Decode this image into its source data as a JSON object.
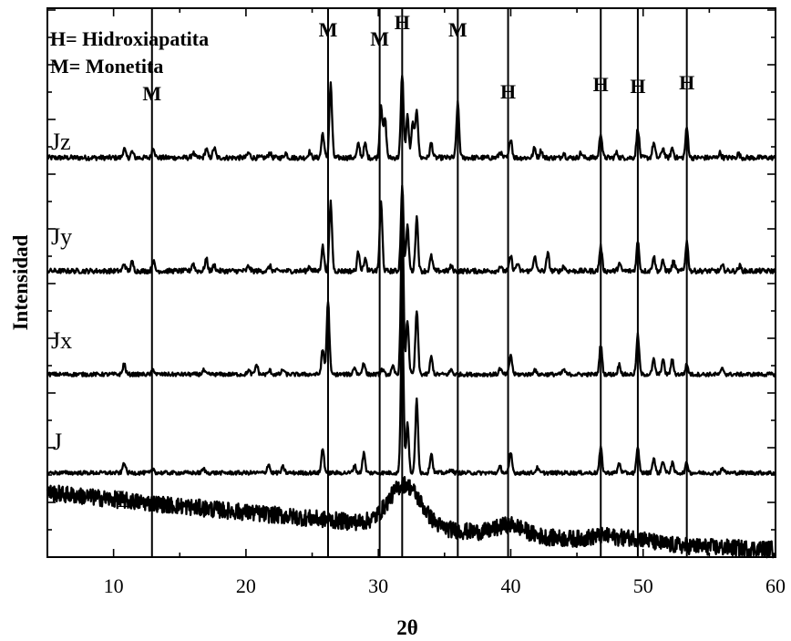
{
  "chart_data": {
    "type": "line",
    "xlabel": "2θ",
    "ylabel": "Intensidad",
    "xlim": [
      5,
      60
    ],
    "xticks": [
      10,
      20,
      30,
      40,
      50,
      60
    ],
    "y_tick_labels_shown": false,
    "grid": false,
    "legend": {
      "placement": "top-left",
      "entries": [
        "H= Hidroxiapatita",
        "M= Monetita"
      ]
    },
    "reference_lines": [
      {
        "label": "M",
        "x": 12.9
      },
      {
        "label": "M",
        "x": 26.2
      },
      {
        "label": "M",
        "x": 30.1
      },
      {
        "label": "H",
        "x": 31.8
      },
      {
        "label": "M",
        "x": 36.0
      },
      {
        "label": "H",
        "x": 39.8
      },
      {
        "label": "H",
        "x": 46.8
      },
      {
        "label": "H",
        "x": 49.6
      },
      {
        "label": "H",
        "x": 53.3
      }
    ],
    "series": [
      {
        "name": "Jz",
        "offset": 0.8,
        "noise": 0.005,
        "peaks": [
          [
            10.8,
            0.018
          ],
          [
            11.4,
            0.012
          ],
          [
            13.0,
            0.022
          ],
          [
            16.0,
            0.01
          ],
          [
            17.0,
            0.018
          ],
          [
            17.6,
            0.02
          ],
          [
            20.2,
            0.01
          ],
          [
            21.8,
            0.01
          ],
          [
            23.0,
            0.01
          ],
          [
            24.8,
            0.012
          ],
          [
            25.8,
            0.05
          ],
          [
            26.4,
            0.15
          ],
          [
            28.5,
            0.028
          ],
          [
            29.0,
            0.028
          ],
          [
            30.2,
            0.11
          ],
          [
            30.5,
            0.08
          ],
          [
            31.8,
            0.17
          ],
          [
            32.2,
            0.085
          ],
          [
            32.6,
            0.07
          ],
          [
            32.9,
            0.1
          ],
          [
            34.0,
            0.03
          ],
          [
            36.0,
            0.11
          ],
          [
            39.2,
            0.012
          ],
          [
            40.0,
            0.04
          ],
          [
            41.8,
            0.02
          ],
          [
            42.3,
            0.015
          ],
          [
            44.0,
            0.01
          ],
          [
            45.3,
            0.01
          ],
          [
            46.8,
            0.05
          ],
          [
            48.0,
            0.01
          ],
          [
            49.6,
            0.06
          ],
          [
            50.8,
            0.03
          ],
          [
            51.5,
            0.02
          ],
          [
            52.2,
            0.02
          ],
          [
            53.3,
            0.06
          ],
          [
            55.8,
            0.01
          ],
          [
            57.2,
            0.008
          ]
        ]
      },
      {
        "name": "Jy",
        "offset": 0.57,
        "noise": 0.005,
        "peaks": [
          [
            10.8,
            0.015
          ],
          [
            11.4,
            0.018
          ],
          [
            13.0,
            0.02
          ],
          [
            16.0,
            0.016
          ],
          [
            17.0,
            0.025
          ],
          [
            17.6,
            0.012
          ],
          [
            20.2,
            0.01
          ],
          [
            21.8,
            0.01
          ],
          [
            24.8,
            0.01
          ],
          [
            25.8,
            0.05
          ],
          [
            26.4,
            0.14
          ],
          [
            28.5,
            0.04
          ],
          [
            29.0,
            0.025
          ],
          [
            30.2,
            0.14
          ],
          [
            31.8,
            0.17
          ],
          [
            32.2,
            0.09
          ],
          [
            32.9,
            0.11
          ],
          [
            34.0,
            0.03
          ],
          [
            35.5,
            0.01
          ],
          [
            39.2,
            0.01
          ],
          [
            40.0,
            0.03
          ],
          [
            40.5,
            0.015
          ],
          [
            41.8,
            0.03
          ],
          [
            42.8,
            0.035
          ],
          [
            44.0,
            0.01
          ],
          [
            46.8,
            0.05
          ],
          [
            48.2,
            0.015
          ],
          [
            49.6,
            0.06
          ],
          [
            50.8,
            0.03
          ],
          [
            51.5,
            0.02
          ],
          [
            52.3,
            0.02
          ],
          [
            53.3,
            0.06
          ],
          [
            56.0,
            0.01
          ],
          [
            57.3,
            0.01
          ]
        ]
      },
      {
        "name": "Jx",
        "offset": 0.36,
        "noise": 0.004,
        "peaks": [
          [
            10.8,
            0.022
          ],
          [
            13.0,
            0.01
          ],
          [
            16.8,
            0.008
          ],
          [
            20.2,
            0.008
          ],
          [
            20.8,
            0.02
          ],
          [
            21.8,
            0.008
          ],
          [
            22.8,
            0.01
          ],
          [
            25.8,
            0.05
          ],
          [
            26.2,
            0.15
          ],
          [
            28.2,
            0.015
          ],
          [
            28.9,
            0.025
          ],
          [
            30.3,
            0.01
          ],
          [
            31.1,
            0.015
          ],
          [
            31.8,
            0.33
          ],
          [
            32.2,
            0.11
          ],
          [
            32.9,
            0.13
          ],
          [
            34.0,
            0.035
          ],
          [
            35.5,
            0.01
          ],
          [
            39.2,
            0.012
          ],
          [
            40.0,
            0.04
          ],
          [
            41.8,
            0.01
          ],
          [
            44.0,
            0.01
          ],
          [
            46.8,
            0.06
          ],
          [
            48.2,
            0.02
          ],
          [
            49.6,
            0.08
          ],
          [
            50.8,
            0.03
          ],
          [
            51.5,
            0.03
          ],
          [
            52.2,
            0.03
          ],
          [
            53.3,
            0.02
          ],
          [
            56.0,
            0.012
          ]
        ]
      },
      {
        "name": "J",
        "offset": 0.16,
        "noise": 0.004,
        "peaks": [
          [
            10.8,
            0.022
          ],
          [
            13.0,
            0.008
          ],
          [
            16.8,
            0.008
          ],
          [
            21.7,
            0.018
          ],
          [
            22.8,
            0.012
          ],
          [
            25.8,
            0.05
          ],
          [
            28.2,
            0.015
          ],
          [
            28.9,
            0.04
          ],
          [
            31.8,
            0.33
          ],
          [
            32.2,
            0.1
          ],
          [
            32.9,
            0.15
          ],
          [
            34.0,
            0.04
          ],
          [
            35.5,
            0.008
          ],
          [
            39.2,
            0.012
          ],
          [
            40.0,
            0.04
          ],
          [
            42.0,
            0.01
          ],
          [
            46.8,
            0.05
          ],
          [
            48.2,
            0.02
          ],
          [
            49.6,
            0.05
          ],
          [
            50.8,
            0.03
          ],
          [
            51.5,
            0.025
          ],
          [
            52.2,
            0.02
          ],
          [
            53.3,
            0.02
          ],
          [
            56.0,
            0.01
          ]
        ]
      },
      {
        "name": "L",
        "offset": 0.0,
        "noise": 0.017,
        "baseline_left": 0.12,
        "baseline_right": 0.005,
        "peaks": [
          [
            32.0,
            0.085,
            1.2
          ],
          [
            40.0,
            0.02,
            1.0
          ],
          [
            47.0,
            0.01,
            1.0
          ],
          [
            49.5,
            0.01,
            1.0
          ]
        ]
      }
    ]
  }
}
